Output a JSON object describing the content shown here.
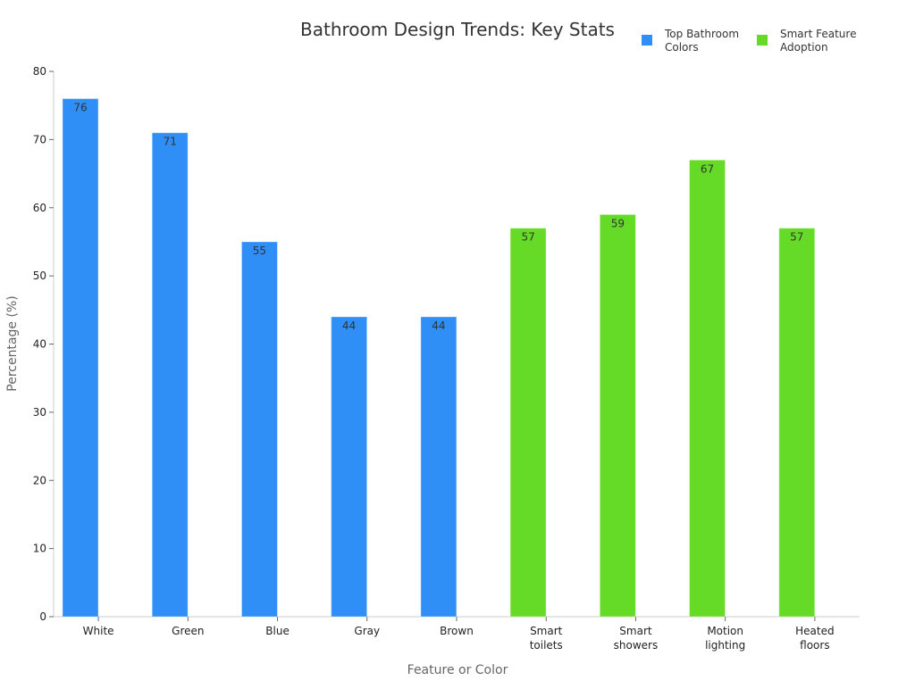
{
  "chart_data": {
    "type": "bar",
    "title": "Bathroom Design Trends: Key Stats",
    "xlabel": "Feature or Color",
    "ylabel": "Percentage (%)",
    "ylim": [
      0,
      80
    ],
    "yticks": [
      0,
      10,
      20,
      30,
      40,
      50,
      60,
      70,
      80
    ],
    "grid": false,
    "legend_position": "top-right",
    "categories": [
      [
        "White"
      ],
      [
        "Green"
      ],
      [
        "Blue"
      ],
      [
        "Gray"
      ],
      [
        "Brown"
      ],
      [
        "Smart",
        "toilets"
      ],
      [
        "Smart",
        "showers"
      ],
      [
        "Motion",
        "lighting"
      ],
      [
        "Heated",
        "floors"
      ]
    ],
    "series": [
      {
        "name": [
          "Top Bathroom",
          "Colors"
        ],
        "color": "#2f8ff7",
        "values": [
          76,
          71,
          55,
          44,
          44,
          null,
          null,
          null,
          null
        ]
      },
      {
        "name": [
          "Smart Feature",
          "Adoption"
        ],
        "color": "#66db27",
        "values": [
          null,
          null,
          null,
          null,
          null,
          57,
          59,
          67,
          57
        ]
      }
    ]
  }
}
